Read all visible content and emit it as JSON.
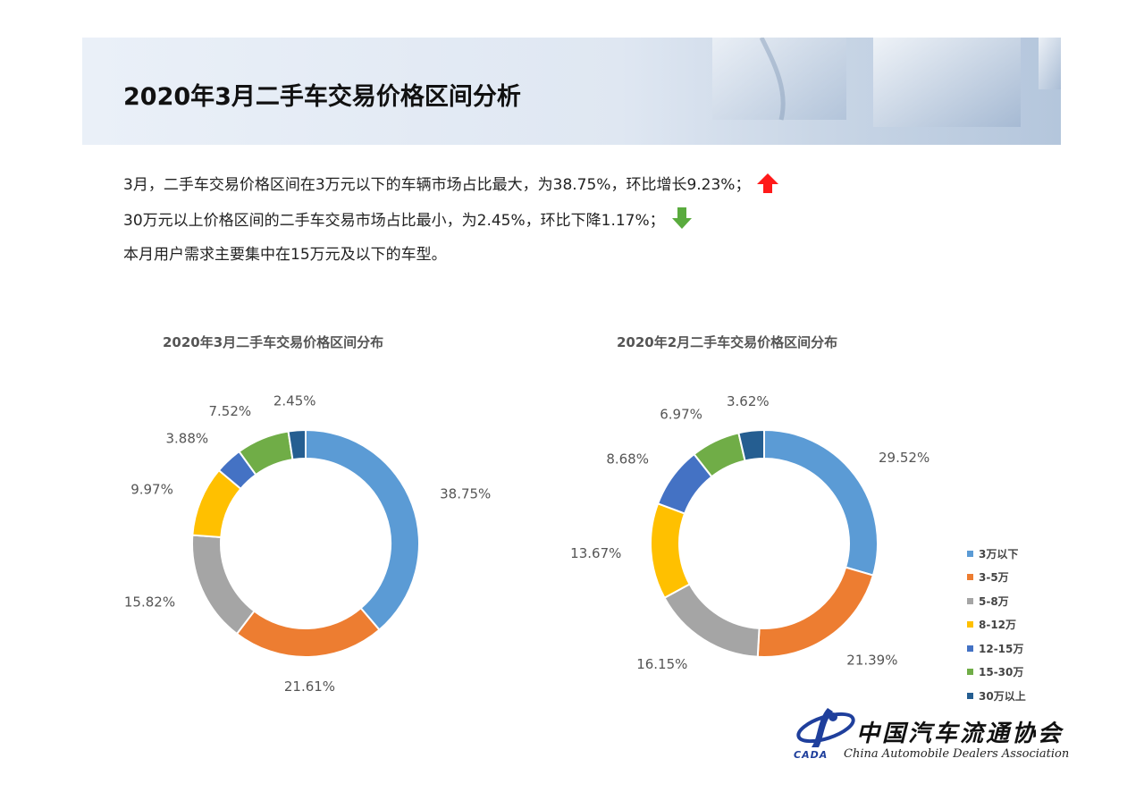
{
  "page_title": "2020年3月二手车交易价格区间分析",
  "paragraphs": [
    "3月，二手车交易价格区间在3万元以下的车辆市场占比最大，为38.75%，环比增长9.23%；",
    "30万元以上价格区间的二手车交易市场占比最小，为2.45%，环比下降1.17%；",
    "本月用户需求主要集中在15万元及以下的车型。"
  ],
  "indicators": {
    "up_color": "#ff1a1a",
    "down_color": "#5aab3e"
  },
  "legend_labels": [
    "3万以下",
    "3-5万",
    "5-8万",
    "8-12万",
    "12-15万",
    "15-30万",
    "30万以上"
  ],
  "colors": [
    "#5b9bd5",
    "#ed7d31",
    "#a5a5a5",
    "#ffc000",
    "#4472c4",
    "#70ad47",
    "#255e91"
  ],
  "chart_data": [
    {
      "type": "pie",
      "title": "2020年3月二手车交易价格区间分布",
      "categories": [
        "3万以下",
        "3-5万",
        "5-8万",
        "8-12万",
        "12-15万",
        "15-30万",
        "30万以上"
      ],
      "values": [
        38.75,
        21.61,
        15.82,
        9.97,
        3.88,
        7.52,
        2.45
      ],
      "labels": [
        "38.75%",
        "21.61%",
        "15.82%",
        "9.97%",
        "3.88%",
        "7.52%",
        "2.45%"
      ],
      "legend": "none"
    },
    {
      "type": "pie",
      "title": "2020年2月二手车交易价格区间分布",
      "categories": [
        "3万以下",
        "3-5万",
        "5-8万",
        "8-12万",
        "12-15万",
        "15-30万",
        "30万以上"
      ],
      "values": [
        29.52,
        21.39,
        16.15,
        13.67,
        8.68,
        6.97,
        3.62
      ],
      "labels": [
        "29.52%",
        "21.39%",
        "16.15%",
        "13.67%",
        "8.68%",
        "6.97%",
        "3.62%"
      ],
      "legend": "right"
    }
  ],
  "logo": {
    "name_cn": "中国汽车流通协会",
    "name_en": "China Automobile Dealers Association",
    "abbr": "CADA"
  }
}
